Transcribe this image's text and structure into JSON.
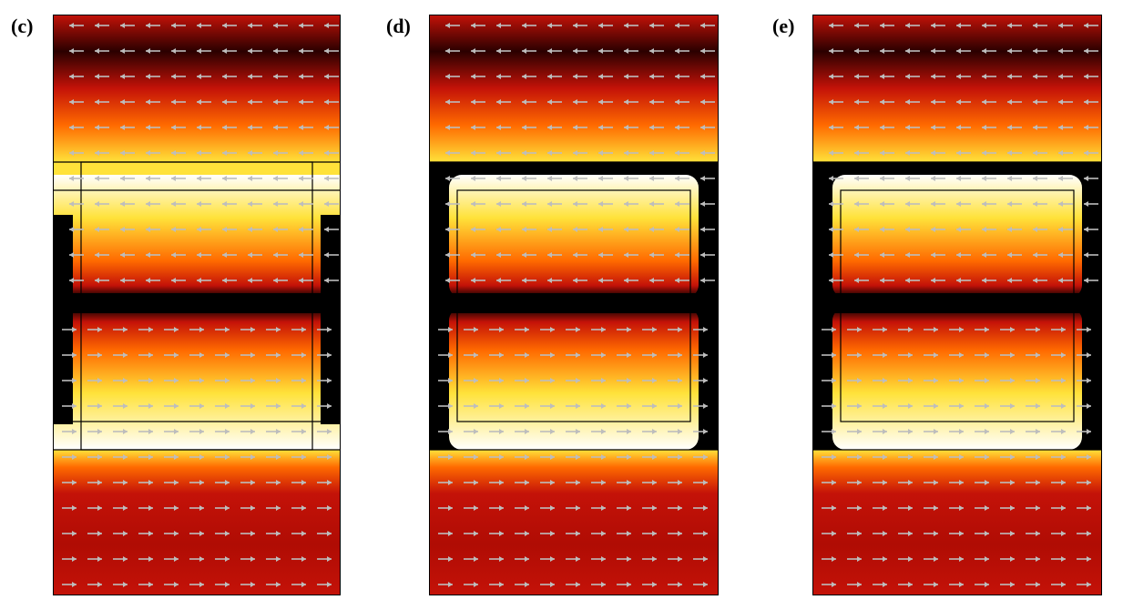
{
  "panels": [
    {
      "label": "(c)",
      "variant": "c"
    },
    {
      "label": "(d)",
      "variant": "d"
    },
    {
      "label": "(e)",
      "variant": "e"
    }
  ],
  "colors": {
    "dark": "#2a0000",
    "red": "#c41208",
    "orange": "#ff6a00",
    "yellow": "#ffe23a",
    "white": "#ffffff",
    "black": "#000000",
    "arrow": "#bdbdbd",
    "outline": "#000000"
  }
}
